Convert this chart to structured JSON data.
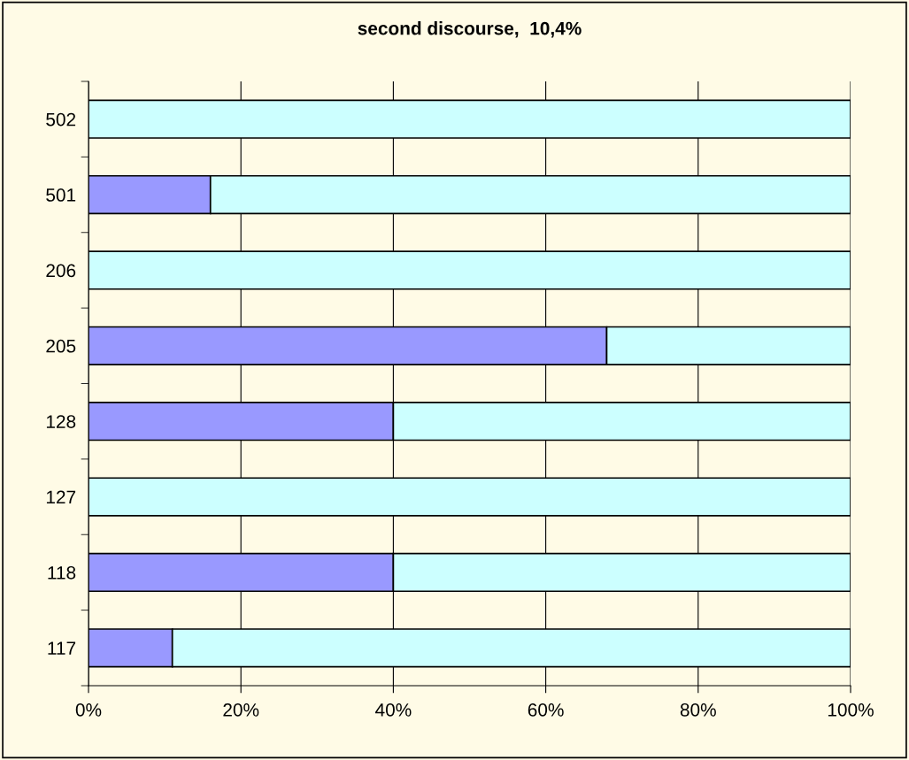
{
  "chart_data": {
    "type": "bar",
    "orientation": "horizontal",
    "stacked": true,
    "title": "second discourse,  10,4%",
    "categories": [
      "502",
      "501",
      "206",
      "205",
      "128",
      "127",
      "118",
      "117"
    ],
    "series": [
      {
        "color": "#9999ff",
        "values": [
          0,
          16,
          0,
          68,
          40,
          0,
          40,
          11
        ]
      },
      {
        "color": "#ccffff",
        "values": [
          100,
          84,
          100,
          32,
          60,
          100,
          60,
          89
        ]
      }
    ],
    "xlim": [
      0,
      100
    ],
    "xticks": [
      {
        "value": 0,
        "label": "0%"
      },
      {
        "value": 20,
        "label": "20%"
      },
      {
        "value": 40,
        "label": "40%"
      },
      {
        "value": 60,
        "label": "60%"
      },
      {
        "value": 80,
        "label": "80%"
      },
      {
        "value": 100,
        "label": "100%"
      }
    ],
    "grid": "x"
  }
}
